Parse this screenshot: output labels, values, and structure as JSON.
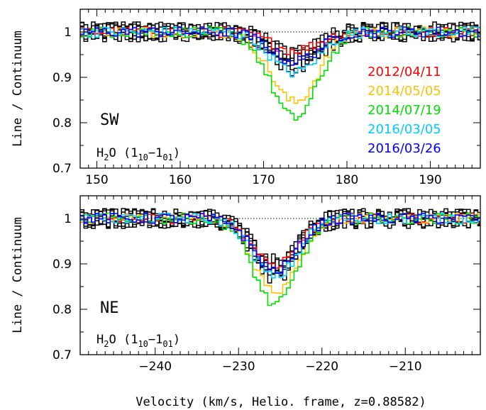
{
  "xlabel": "Velocity (km/s, Helio. frame, z=0.88582)",
  "ylabel": "Line / Continuum",
  "legend": [
    {
      "label": "2012/04/11",
      "color": "#ff0000"
    },
    {
      "label": "2014/05/05",
      "color": "#ffc000"
    },
    {
      "label": "2014/07/19",
      "color": "#00e000"
    },
    {
      "label": "2016/03/05",
      "color": "#00ccff"
    },
    {
      "label": "2016/03/26",
      "color": "#0000ff"
    }
  ],
  "chart_data": [
    {
      "type": "line",
      "panel": "top",
      "panel_label": "SW",
      "molecule_label": {
        "base": "H",
        "sub1": "2",
        "mid": "O (1",
        "sub2": "10",
        "dash": "−1",
        "sub3": "01",
        "end": ")"
      },
      "xlim": [
        148,
        196
      ],
      "ylim": [
        0.7,
        1.05
      ],
      "xticks": [
        150,
        160,
        170,
        180,
        190
      ],
      "yticks": [
        0.7,
        0.8,
        0.9,
        1
      ],
      "continuum": 1,
      "grid": false,
      "legend_position": "right",
      "profile": {
        "center": 173.5,
        "width": 2.8
      },
      "series": [
        {
          "name": "2012/04/11",
          "color": "#ff0000",
          "depth": 0.04
        },
        {
          "name": "2014/05/05",
          "color": "#ffc000",
          "depth": 0.155
        },
        {
          "name": "2014/07/19",
          "color": "#00e000",
          "depth": 0.19
        },
        {
          "name": "2016/03/05",
          "color": "#00ccff",
          "depth": 0.09
        },
        {
          "name": "2016/03/26",
          "color": "#0000ff",
          "depth": 0.065
        },
        {
          "color": "#000000",
          "depth": 0.06
        },
        {
          "color": "#000000",
          "depth": 0.05
        },
        {
          "color": "#000000",
          "depth": 0.07
        },
        {
          "color": "#000000",
          "depth": 0.045
        },
        {
          "color": "#000000",
          "depth": 0.075
        },
        {
          "color": "#000000",
          "depth": 0.055
        }
      ]
    },
    {
      "type": "line",
      "panel": "bottom",
      "panel_label": "NE",
      "molecule_label": {
        "base": "H",
        "sub1": "2",
        "mid": "O (1",
        "sub2": "10",
        "dash": "−1",
        "sub3": "01",
        "end": ")"
      },
      "xlim": [
        -249,
        -201
      ],
      "ylim": [
        0.7,
        1.05
      ],
      "xticks": [
        -240,
        -230,
        -220,
        -210
      ],
      "yticks": [
        0.7,
        0.8,
        0.9,
        1
      ],
      "continuum": 1,
      "grid": false,
      "profile": {
        "center": -225.8,
        "width": 2.6
      },
      "series": [
        {
          "name": "2012/04/11",
          "color": "#ff0000",
          "depth": 0.1
        },
        {
          "name": "2014/05/05",
          "color": "#ffc000",
          "depth": 0.16
        },
        {
          "name": "2014/07/19",
          "color": "#00e000",
          "depth": 0.19
        },
        {
          "name": "2016/03/05",
          "color": "#00ccff",
          "depth": 0.13
        },
        {
          "name": "2016/03/26",
          "color": "#0000ff",
          "depth": 0.115
        },
        {
          "color": "#000000",
          "depth": 0.1
        },
        {
          "color": "#000000",
          "depth": 0.11
        },
        {
          "color": "#000000",
          "depth": 0.12
        },
        {
          "color": "#000000",
          "depth": 0.105
        },
        {
          "color": "#000000",
          "depth": 0.095
        },
        {
          "color": "#000000",
          "depth": 0.125
        }
      ]
    }
  ]
}
